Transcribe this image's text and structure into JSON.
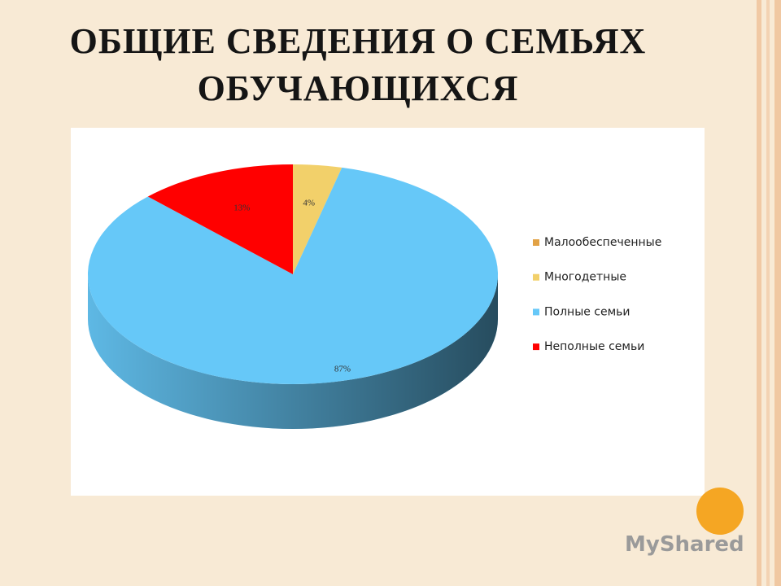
{
  "chart_data": {
    "type": "pie3d",
    "title": "ОБЩИЕ СВЕДЕНИЯ О СЕМЬЯХ ОБУЧАЮЩИХСЯ",
    "categories": [
      "Малообеспеченные",
      "Многодетные",
      "Полные семьи",
      "Неполные семьи"
    ],
    "values": [
      0,
      4,
      87,
      13
    ],
    "value_labels": [
      null,
      "4%",
      "87%",
      "13%"
    ],
    "colors": [
      "#e2a245",
      "#f2d06a",
      "#66c8f8",
      "#ff0000"
    ],
    "legend": "right"
  },
  "watermark": "MyShared"
}
